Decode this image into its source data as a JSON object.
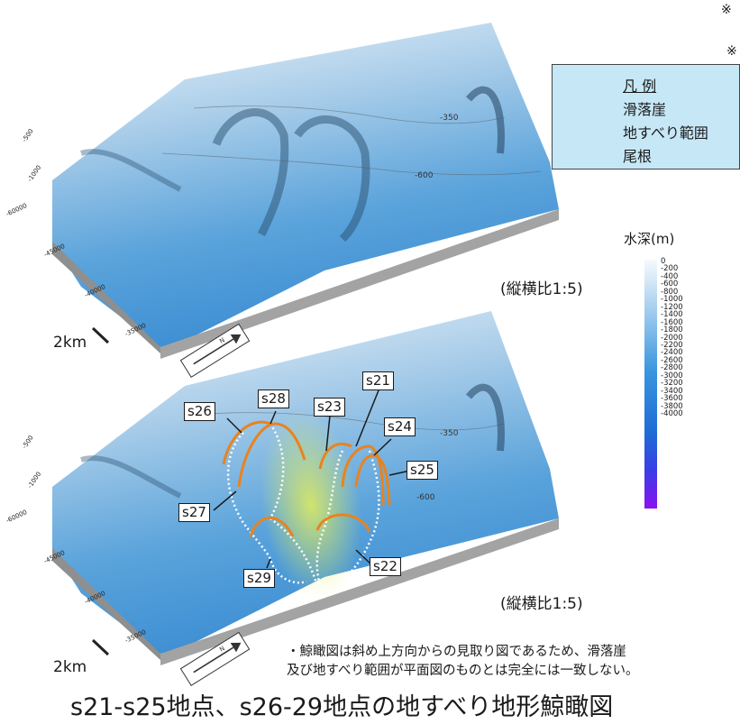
{
  "legend": {
    "title": "凡 例",
    "items": [
      {
        "label": "滑落崖",
        "color": "#e9831e"
      },
      {
        "label": "地すべり範囲",
        "color": "#ffffff"
      },
      {
        "label": "尾根",
        "color": "#e4ee8a"
      }
    ]
  },
  "colorbar": {
    "title": "水深(m)",
    "ticks": [
      "0",
      "-200",
      "-400",
      "-600",
      "-800",
      "-1000",
      "-1200",
      "-1400",
      "-1600",
      "-1800",
      "-2000",
      "-2200",
      "-2400",
      "-2600",
      "-2800",
      "-3000",
      "-3200",
      "-3400",
      "-3600",
      "-3800",
      "-4000"
    ],
    "colors": [
      "#f5f9fd",
      "#1e7fd8",
      "#8a12f0"
    ]
  },
  "top_panel": {
    "aspect_label": "(縦横比1:5)",
    "scale_label": "2km",
    "contour_labels": [
      "-350",
      "-600"
    ],
    "axis_labels": [
      "-500",
      "-1000",
      "-60000",
      "-45000",
      "-40000",
      "-35000"
    ]
  },
  "bottom_panel": {
    "aspect_label": "(縦横比1:5)",
    "scale_label": "2km",
    "contour_labels": [
      "-350",
      "-600"
    ],
    "axis_labels": [
      "-500",
      "-1000",
      "-60000",
      "-45000",
      "-40000",
      "-35000"
    ],
    "sites": [
      "s21",
      "s22",
      "s23",
      "s24",
      "s25",
      "s26",
      "s27",
      "s28",
      "s29"
    ]
  },
  "marks": [
    "※",
    "※"
  ],
  "note": {
    "line1": "・鯨瞰図は斜め上方向からの見取り図であるため、滑落崖",
    "line2": "及び地すべり範囲が平面図のものとは完全には一致しない。"
  },
  "caption": "s21-s25地点、s26-29地点の地すべり地形鯨瞰図"
}
